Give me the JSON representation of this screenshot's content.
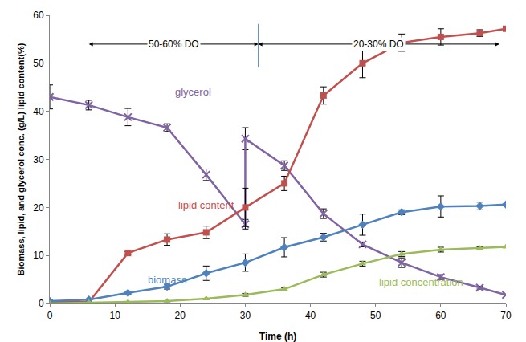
{
  "chart_data": {
    "type": "line",
    "x_label": "Time (h)",
    "y_label": "Biomass, lipid, and glycerol conc. (g/L) lipid content(%)",
    "xlim": [
      0,
      70
    ],
    "xticks": [
      0,
      10,
      20,
      30,
      40,
      50,
      60,
      70
    ],
    "ylim": [
      0,
      60
    ],
    "yticks": [
      0,
      10,
      20,
      30,
      40,
      50,
      60
    ],
    "grid": false,
    "phases": [
      {
        "label": "50-60% DO",
        "start": 6,
        "end": 32,
        "y": 54
      },
      {
        "label": "20-30% DO",
        "start": 32,
        "end": 69,
        "y": 54
      }
    ],
    "series": [
      {
        "name": "glycerol",
        "color": "#8064a2",
        "marker": "x",
        "label_at": [
          22,
          44
        ],
        "x": [
          0,
          6,
          12,
          18,
          24,
          30,
          30,
          36,
          42,
          48,
          54,
          60,
          66,
          70
        ],
        "values": [
          43,
          41.3,
          38.8,
          36.6,
          26.8,
          16.5,
          34.3,
          28.7,
          18.7,
          12.3,
          8.5,
          5.5,
          3.3,
          1.8
        ],
        "errors": [
          2.5,
          1,
          1.8,
          0.8,
          1.2,
          1,
          2.3,
          1,
          1,
          0.5,
          1,
          0.5,
          0.3,
          0
        ]
      },
      {
        "name": "lipid content",
        "color": "#c0504d",
        "marker": "square",
        "label_at": [
          24,
          20.5
        ],
        "x": [
          0,
          6,
          12,
          18,
          24,
          30,
          36,
          42,
          48,
          54,
          60,
          66,
          70
        ],
        "values": [
          0.3,
          0.3,
          10.5,
          13.3,
          14.8,
          20,
          25,
          43.3,
          50,
          54.3,
          55.5,
          56.3,
          57.2
        ],
        "errors": [
          0,
          0,
          0.3,
          1.2,
          1.3,
          4,
          1.5,
          1.8,
          3,
          1.8,
          1.7,
          0.7,
          0
        ]
      },
      {
        "name": "biomass",
        "color": "#4f81bd",
        "marker": "diamond",
        "label_at": [
          18,
          5
        ],
        "x": [
          0,
          6,
          12,
          18,
          24,
          30,
          36,
          42,
          48,
          54,
          60,
          66,
          70
        ],
        "values": [
          0.5,
          0.8,
          2.2,
          3.5,
          6.3,
          8.5,
          11.7,
          13.8,
          16.4,
          19,
          20.2,
          20.3,
          20.6
        ],
        "errors": [
          0,
          0,
          0.3,
          0.5,
          1.5,
          1.8,
          2,
          0.8,
          2.2,
          0.5,
          2.2,
          0.8,
          0
        ]
      },
      {
        "name": "lipid concentration",
        "color": "#9bbb59",
        "marker": "triangle-up",
        "label_at": [
          57,
          4.5
        ],
        "x": [
          0,
          6,
          12,
          18,
          24,
          30,
          36,
          42,
          48,
          54,
          60,
          66,
          70
        ],
        "values": [
          0,
          0.2,
          0.3,
          0.5,
          1,
          1.8,
          3,
          6,
          8.3,
          10.3,
          11.2,
          11.5,
          11.8
        ],
        "errors": [
          0,
          0,
          0,
          0,
          0,
          0.3,
          0.3,
          0.5,
          0.5,
          0.5,
          0.5,
          0.3,
          0
        ]
      }
    ]
  }
}
